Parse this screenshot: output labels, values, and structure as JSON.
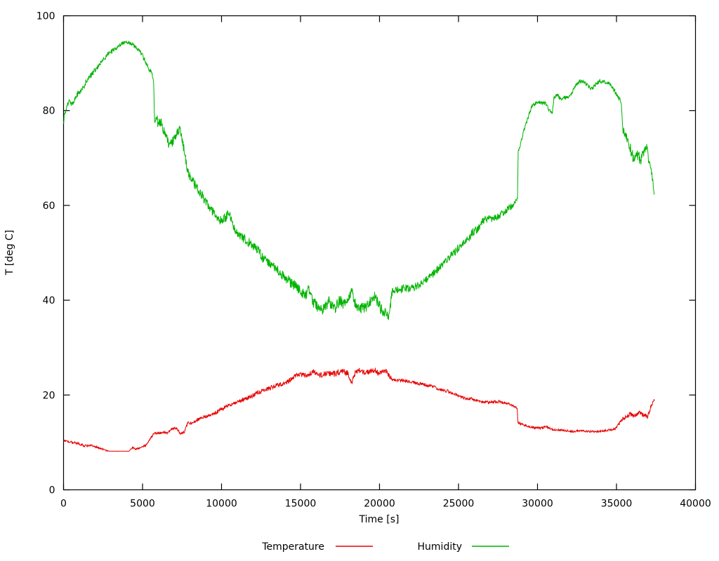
{
  "figure": {
    "background": "#ffffff",
    "text_color": "#000000"
  },
  "chart_data": {
    "type": "line",
    "title": "",
    "xlabel": "Time [s]",
    "ylabel": "T [deg C]",
    "xlim": [
      0,
      40000
    ],
    "ylim": [
      0,
      100
    ],
    "x_ticks": [
      0,
      5000,
      10000,
      15000,
      20000,
      25000,
      30000,
      35000,
      40000
    ],
    "y_ticks": [
      0,
      20,
      40,
      60,
      80,
      100
    ],
    "grid": false,
    "legend_position": "bottom-center",
    "series": [
      {
        "name": "Temperature",
        "color": "#e80000",
        "points": [
          [
            0,
            10.4,
            0.25
          ],
          [
            400,
            10.1,
            0.25
          ],
          [
            900,
            9.8,
            0.25
          ],
          [
            1300,
            9.3,
            0.25
          ],
          [
            1800,
            9.3,
            0.2
          ],
          [
            2200,
            8.9,
            0.2
          ],
          [
            2700,
            8.3,
            0.15
          ],
          [
            2960,
            8.15,
            0.02
          ],
          [
            4140,
            8.15,
            0.02
          ],
          [
            4360,
            8.9,
            0.2
          ],
          [
            4580,
            8.6,
            0.2
          ],
          [
            4900,
            9.0,
            0.2
          ],
          [
            5200,
            9.3,
            0.2
          ],
          [
            5470,
            10.8,
            0.25
          ],
          [
            5700,
            11.8,
            0.25
          ],
          [
            5910,
            12.0,
            0.25
          ],
          [
            6300,
            12.1,
            0.25
          ],
          [
            6550,
            12.0,
            0.25
          ],
          [
            6800,
            12.7,
            0.25
          ],
          [
            7100,
            13.0,
            0.3
          ],
          [
            7420,
            11.8,
            0.3
          ],
          [
            7650,
            12.3,
            0.3
          ],
          [
            7870,
            14.2,
            0.35
          ],
          [
            8090,
            14.1,
            0.3
          ],
          [
            8310,
            14.5,
            0.35
          ],
          [
            8760,
            15.2,
            0.35
          ],
          [
            9200,
            15.7,
            0.4
          ],
          [
            9650,
            16.3,
            0.4
          ],
          [
            10090,
            17.2,
            0.4
          ],
          [
            10360,
            17.8,
            0.4
          ],
          [
            10800,
            18.2,
            0.4
          ],
          [
            11240,
            18.9,
            0.45
          ],
          [
            11870,
            19.7,
            0.45
          ],
          [
            12440,
            20.7,
            0.45
          ],
          [
            13020,
            21.4,
            0.45
          ],
          [
            13640,
            22.2,
            0.45
          ],
          [
            14090,
            22.6,
            0.45
          ],
          [
            14500,
            23.6,
            0.5
          ],
          [
            14800,
            24.4,
            0.5
          ],
          [
            15400,
            24.1,
            0.55
          ],
          [
            15870,
            25.0,
            0.6
          ],
          [
            16130,
            24.1,
            0.55
          ],
          [
            16760,
            24.6,
            0.6
          ],
          [
            17200,
            24.4,
            0.6
          ],
          [
            17640,
            25.1,
            0.6
          ],
          [
            18000,
            24.6,
            0.55
          ],
          [
            18230,
            22.3,
            0.4
          ],
          [
            18450,
            24.6,
            0.6
          ],
          [
            18670,
            25.3,
            0.6
          ],
          [
            19110,
            24.6,
            0.6
          ],
          [
            19560,
            25.4,
            0.6
          ],
          [
            20000,
            24.6,
            0.6
          ],
          [
            20440,
            25.0,
            0.6
          ],
          [
            20760,
            23.4,
            0.4
          ],
          [
            21200,
            23.1,
            0.35
          ],
          [
            21780,
            22.9,
            0.35
          ],
          [
            22670,
            22.3,
            0.35
          ],
          [
            23240,
            21.9,
            0.35
          ],
          [
            23870,
            21.2,
            0.35
          ],
          [
            24440,
            20.7,
            0.35
          ],
          [
            24890,
            20.0,
            0.3
          ],
          [
            25470,
            19.2,
            0.3
          ],
          [
            25910,
            19.2,
            0.3
          ],
          [
            26360,
            18.6,
            0.3
          ],
          [
            26980,
            18.5,
            0.3
          ],
          [
            27560,
            18.6,
            0.3
          ],
          [
            28130,
            18.2,
            0.25
          ],
          [
            28440,
            17.8,
            0.25
          ],
          [
            28711,
            17.2,
            0.2
          ],
          [
            28760,
            14.2,
            0.25
          ],
          [
            29020,
            13.8,
            0.25
          ],
          [
            29470,
            13.3,
            0.25
          ],
          [
            30090,
            13.0,
            0.25
          ],
          [
            30530,
            13.3,
            0.25
          ],
          [
            30980,
            12.7,
            0.2
          ],
          [
            31560,
            12.6,
            0.2
          ],
          [
            32130,
            12.3,
            0.2
          ],
          [
            32760,
            12.5,
            0.2
          ],
          [
            33330,
            12.3,
            0.2
          ],
          [
            33910,
            12.3,
            0.2
          ],
          [
            34530,
            12.6,
            0.25
          ],
          [
            34980,
            13.0,
            0.25
          ],
          [
            35330,
            14.8,
            0.4
          ],
          [
            35560,
            15.2,
            0.4
          ],
          [
            35870,
            16.0,
            0.45
          ],
          [
            36130,
            15.5,
            0.45
          ],
          [
            36440,
            16.2,
            0.45
          ],
          [
            36760,
            15.7,
            0.45
          ],
          [
            36980,
            15.5,
            0.45
          ],
          [
            37200,
            17.8,
            0.4
          ],
          [
            37330,
            18.6,
            0.35
          ],
          [
            37400,
            19.0,
            0.3
          ]
        ]
      },
      {
        "name": "Humidity",
        "color": "#00b400",
        "points": [
          [
            0,
            77.8,
            0.8
          ],
          [
            150,
            80.5,
            0.8
          ],
          [
            350,
            81.8,
            0.6
          ],
          [
            550,
            81.2,
            0.6
          ],
          [
            750,
            82.6,
            0.6
          ],
          [
            900,
            83.6,
            0.6
          ],
          [
            1200,
            84.6,
            0.6
          ],
          [
            1500,
            86.6,
            0.6
          ],
          [
            1900,
            88.2,
            0.6
          ],
          [
            2350,
            90.0,
            0.5
          ],
          [
            2800,
            91.9,
            0.5
          ],
          [
            3100,
            92.6,
            0.5
          ],
          [
            3400,
            93.3,
            0.4
          ],
          [
            3700,
            94.2,
            0.4
          ],
          [
            4000,
            94.4,
            0.4
          ],
          [
            4300,
            94.1,
            0.4
          ],
          [
            4600,
            93.3,
            0.4
          ],
          [
            4900,
            92.2,
            0.5
          ],
          [
            5100,
            90.9,
            0.5
          ],
          [
            5300,
            89.4,
            0.5
          ],
          [
            5500,
            88.3,
            0.5
          ],
          [
            5650,
            87.2,
            0.5
          ],
          [
            5700,
            86.0,
            0.3
          ],
          [
            5760,
            78.5,
            1.2
          ],
          [
            6000,
            77.5,
            1.2
          ],
          [
            6250,
            77.0,
            1.2
          ],
          [
            6500,
            74.0,
            1.2
          ],
          [
            6750,
            72.7,
            1.0
          ],
          [
            7000,
            74.0,
            1.0
          ],
          [
            7250,
            75.8,
            1.0
          ],
          [
            7400,
            76.2,
            0.9
          ],
          [
            7550,
            73.0,
            1.0
          ],
          [
            7700,
            70.6,
            1.0
          ],
          [
            7900,
            66.5,
            1.2
          ],
          [
            8200,
            65.0,
            1.2
          ],
          [
            8450,
            63.8,
            1.0
          ],
          [
            8900,
            61.4,
            1.0
          ],
          [
            9350,
            59.2,
            1.0
          ],
          [
            9800,
            56.9,
            1.1
          ],
          [
            10250,
            57.3,
            1.1
          ],
          [
            10450,
            59.0,
            1.0
          ],
          [
            10700,
            56.0,
            1.1
          ],
          [
            10900,
            54.4,
            1.0
          ],
          [
            11350,
            53.2,
            1.0
          ],
          [
            11800,
            52.0,
            1.0
          ],
          [
            12250,
            50.8,
            1.0
          ],
          [
            12700,
            48.4,
            1.1
          ],
          [
            13150,
            47.2,
            1.0
          ],
          [
            13600,
            46.2,
            1.0
          ],
          [
            14050,
            44.6,
            1.1
          ],
          [
            14500,
            43.4,
            1.1
          ],
          [
            14950,
            42.2,
            1.1
          ],
          [
            15350,
            41.0,
            1.1
          ],
          [
            15500,
            42.4,
            1.0
          ],
          [
            15800,
            39.5,
            1.2
          ],
          [
            16100,
            38.5,
            1.2
          ],
          [
            16350,
            37.7,
            1.2
          ],
          [
            16800,
            39.5,
            1.3
          ],
          [
            17200,
            38.5,
            1.3
          ],
          [
            17500,
            40.0,
            1.2
          ],
          [
            17800,
            39.0,
            1.2
          ],
          [
            18250,
            42.0,
            1.1
          ],
          [
            18550,
            38.2,
            1.2
          ],
          [
            19150,
            38.6,
            1.2
          ],
          [
            19700,
            41.0,
            1.1
          ],
          [
            20150,
            37.7,
            1.2
          ],
          [
            20600,
            36.7,
            1.0
          ],
          [
            20800,
            41.9,
            0.9
          ],
          [
            21250,
            42.3,
            0.9
          ],
          [
            21950,
            42.6,
            0.8
          ],
          [
            22400,
            43.0,
            0.8
          ],
          [
            22850,
            44.1,
            0.8
          ],
          [
            23300,
            45.2,
            0.8
          ],
          [
            23700,
            46.6,
            0.9
          ],
          [
            24150,
            48.0,
            0.9
          ],
          [
            24600,
            49.6,
            0.9
          ],
          [
            25050,
            51.0,
            0.9
          ],
          [
            25500,
            52.5,
            0.9
          ],
          [
            25950,
            54.5,
            0.9
          ],
          [
            26250,
            55.0,
            0.8
          ],
          [
            26500,
            56.5,
            0.8
          ],
          [
            26700,
            57.2,
            0.8
          ],
          [
            27100,
            57.0,
            0.8
          ],
          [
            27550,
            57.6,
            0.8
          ],
          [
            28000,
            58.9,
            0.7
          ],
          [
            28450,
            60.1,
            0.7
          ],
          [
            28740,
            61.5,
            0.5
          ],
          [
            28770,
            71.4,
            0.5
          ],
          [
            29000,
            73.8,
            0.5
          ],
          [
            29200,
            76.6,
            0.5
          ],
          [
            29450,
            78.9,
            0.5
          ],
          [
            29650,
            81.0,
            0.4
          ],
          [
            29900,
            81.5,
            0.4
          ],
          [
            30100,
            81.8,
            0.4
          ],
          [
            30550,
            81.4,
            0.4
          ],
          [
            30800,
            79.8,
            0.5
          ],
          [
            30930,
            79.3,
            0.5
          ],
          [
            31050,
            82.8,
            0.4
          ],
          [
            31250,
            83.3,
            0.4
          ],
          [
            31500,
            82.5,
            0.4
          ],
          [
            31900,
            82.8,
            0.4
          ],
          [
            32150,
            83.7,
            0.4
          ],
          [
            32450,
            85.4,
            0.4
          ],
          [
            32700,
            86.2,
            0.4
          ],
          [
            33000,
            85.8,
            0.4
          ],
          [
            33250,
            85.0,
            0.4
          ],
          [
            33450,
            84.7,
            0.4
          ],
          [
            33700,
            85.5,
            0.4
          ],
          [
            33900,
            86.2,
            0.4
          ],
          [
            34100,
            86.2,
            0.4
          ],
          [
            34350,
            85.9,
            0.4
          ],
          [
            34550,
            85.7,
            0.4
          ],
          [
            34800,
            84.5,
            0.5
          ],
          [
            35050,
            83.3,
            0.5
          ],
          [
            35250,
            82.0,
            0.5
          ],
          [
            35330,
            80.5,
            0.6
          ],
          [
            35380,
            76.2,
            0.8
          ],
          [
            35500,
            75.3,
            0.9
          ],
          [
            35700,
            74.0,
            1.0
          ],
          [
            35950,
            71.2,
            1.2
          ],
          [
            36100,
            69.7,
            1.2
          ],
          [
            36350,
            70.6,
            1.2
          ],
          [
            36550,
            69.4,
            1.2
          ],
          [
            36750,
            71.3,
            1.3
          ],
          [
            36900,
            73.0,
            1.2
          ],
          [
            37050,
            68.8,
            1.3
          ],
          [
            37200,
            67.2,
            1.0
          ],
          [
            37280,
            65.6,
            0.8
          ],
          [
            37360,
            62.9,
            0.6
          ],
          [
            37400,
            62.2,
            0.3
          ]
        ]
      }
    ]
  }
}
